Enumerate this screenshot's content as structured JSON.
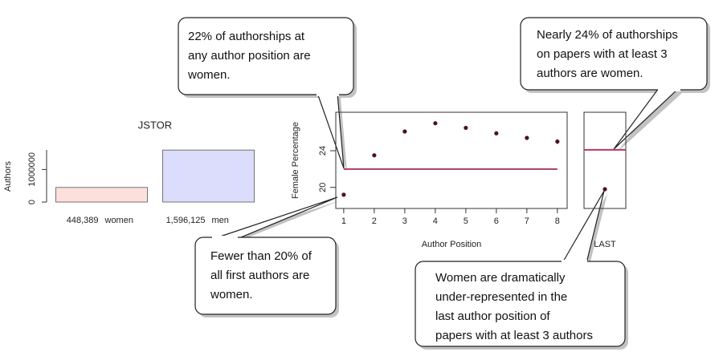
{
  "chart_data": [
    {
      "type": "bar",
      "title": "JSTOR",
      "ylabel": "Authors",
      "categories": [
        "women",
        "men"
      ],
      "values": [
        448389,
        1596125
      ],
      "value_labels": [
        "448,389",
        "1,596,125"
      ],
      "colors": [
        "#fde0dc",
        "#dcdcfc"
      ],
      "ylim": [
        0,
        1600000
      ],
      "yticks": [
        0,
        1000000
      ]
    },
    {
      "type": "scatter",
      "xlabel": "Author Position",
      "ylabel": "Female Percentage",
      "x": [
        1,
        2,
        3,
        4,
        5,
        6,
        7,
        8
      ],
      "values": [
        19.2,
        23.5,
        26.1,
        27.0,
        26.5,
        25.9,
        25.4,
        25.0
      ],
      "errors": [
        0.12,
        0.15,
        0.12,
        0.12,
        0.15,
        0.18,
        0.22,
        0.25
      ],
      "reference_line": 22,
      "color": "#4a1030",
      "line_color": "#b03a60",
      "xlim": [
        0.74,
        8.32
      ],
      "xticks": [
        1,
        2,
        3,
        4,
        5,
        6,
        7,
        8
      ],
      "ylim": [
        17.7,
        28.2
      ],
      "yticks": [
        20,
        24
      ]
    },
    {
      "type": "scatter",
      "xlabel": "LAST",
      "values": [
        19.8
      ],
      "errors": [
        0.15
      ],
      "reference_line": 24.1,
      "color": "#4a1030",
      "line_color": "#b03a60",
      "ylim": [
        17.7,
        28.2
      ]
    }
  ],
  "callouts": [
    {
      "lines": [
        "22% of authorships at",
        "any author position are",
        "women."
      ]
    },
    {
      "lines": [
        "Nearly 24% of authorships",
        "on papers with at least 3",
        "authors are women."
      ]
    },
    {
      "lines": [
        "Fewer than 20% of",
        "all first authors are",
        "women."
      ]
    },
    {
      "lines": [
        "Women are dramatically",
        "under-represented in the",
        "last author position of",
        "papers with at least 3 authors"
      ]
    }
  ]
}
